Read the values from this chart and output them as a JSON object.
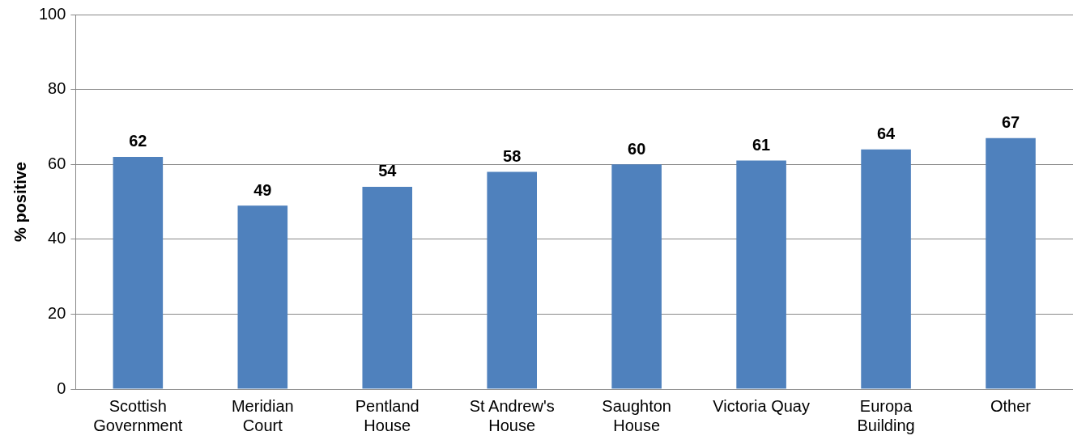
{
  "chart_data": {
    "type": "bar",
    "ylabel": "% positive",
    "categories": [
      "Scottish Government",
      "Meridian Court",
      "Pentland House",
      "St Andrew's House",
      "Saughton House",
      "Victoria Quay",
      "Europa Building",
      "Other"
    ],
    "values": [
      62,
      49,
      54,
      58,
      60,
      61,
      64,
      67
    ],
    "color": "#4f81bd",
    "ylim": [
      0,
      100
    ],
    "yticks": [
      0,
      20,
      40,
      60,
      80,
      100
    ],
    "grid": "y",
    "data_labels": true,
    "legend": false
  }
}
